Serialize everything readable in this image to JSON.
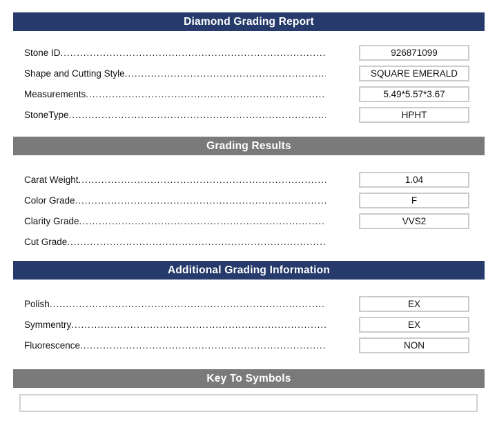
{
  "report": {
    "colors": {
      "header_blue": "#263a6b",
      "header_gray": "#7a7a7a",
      "box_border": "#cbcbcb",
      "header_text": "#ffffff",
      "text": "#111111"
    },
    "sections": [
      {
        "title": "Diamond Grading Report",
        "style": "blue",
        "rows": [
          {
            "label": "Stone ID",
            "value": "926871099"
          },
          {
            "label": "Shape and Cutting Style",
            "value": "SQUARE EMERALD"
          },
          {
            "label": "Measurements",
            "value": "5.49*5.57*3.67"
          },
          {
            "label": "StoneType",
            "value": "HPHT"
          }
        ]
      },
      {
        "title": "Grading Results",
        "style": "gray",
        "rows": [
          {
            "label": "Carat Weight",
            "value": "1.04"
          },
          {
            "label": "Color Grade",
            "value": "F"
          },
          {
            "label": "Clarity Grade",
            "value": "VVS2"
          },
          {
            "label": "Cut Grade",
            "value": ""
          }
        ]
      },
      {
        "title": "Additional Grading Information",
        "style": "blue",
        "rows": [
          {
            "label": "Polish",
            "value": "EX"
          },
          {
            "label": "Symmentry",
            "value": "EX"
          },
          {
            "label": "Fluorescence",
            "value": "NON"
          }
        ]
      },
      {
        "title": "Key To Symbols",
        "style": "gray",
        "rows": [],
        "symbols_box_value": ""
      }
    ]
  }
}
